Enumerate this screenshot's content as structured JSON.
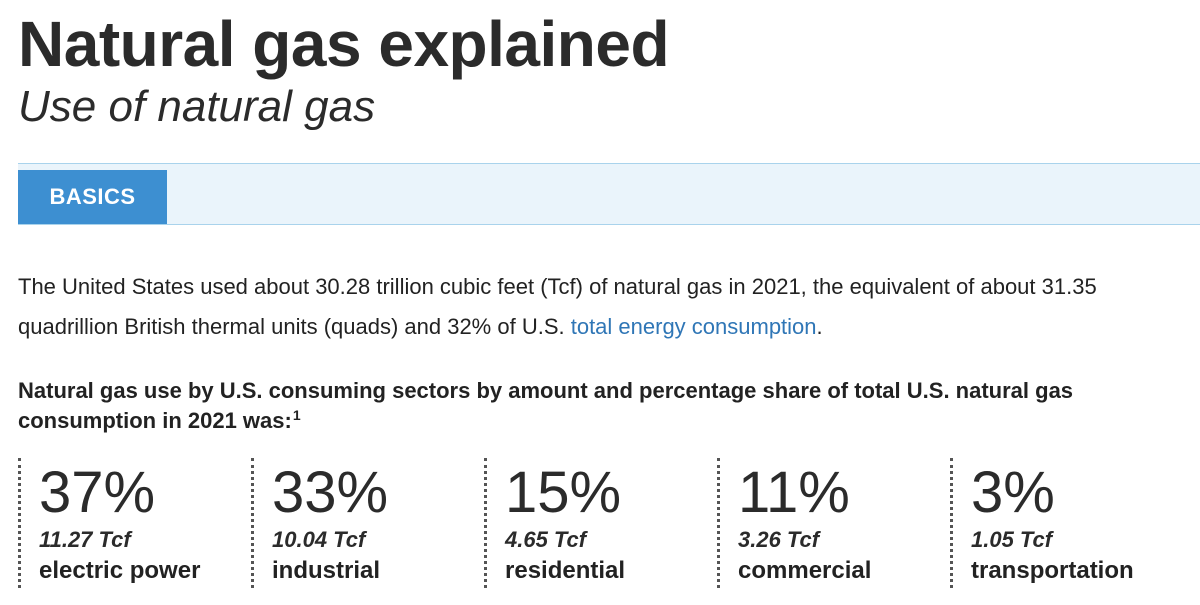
{
  "header": {
    "title": "Natural gas explained",
    "subtitle": "Use of natural gas"
  },
  "tabs": {
    "active_label": "BASICS",
    "active_color": "#3d8fd1",
    "bar_color": "#eaf4fb"
  },
  "intro": {
    "text_before_link": "The United States used about 30.28 trillion cubic feet (Tcf) of natural gas in 2021, the equivalent of about 31.35 quadrillion British thermal units (quads) and 32% of U.S. ",
    "link_text": "total energy consumption",
    "text_after_link": ".",
    "link_color": "#2f76b6"
  },
  "lead": {
    "text": "Natural gas use by U.S. consuming sectors by amount and percentage share of total U.S. natural gas consumption in 2021 was:",
    "footnote": "1"
  },
  "sectors": [
    {
      "percent": "37%",
      "amount": "11.27 Tcf",
      "name": "electric power"
    },
    {
      "percent": "33%",
      "amount": "10.04 Tcf",
      "name": "industrial"
    },
    {
      "percent": "15%",
      "amount": "4.65 Tcf",
      "name": "residential"
    },
    {
      "percent": "11%",
      "amount": "3.26 Tcf",
      "name": "commercial"
    },
    {
      "percent": "3%",
      "amount": "1.05 Tcf",
      "name": "transportation"
    }
  ]
}
